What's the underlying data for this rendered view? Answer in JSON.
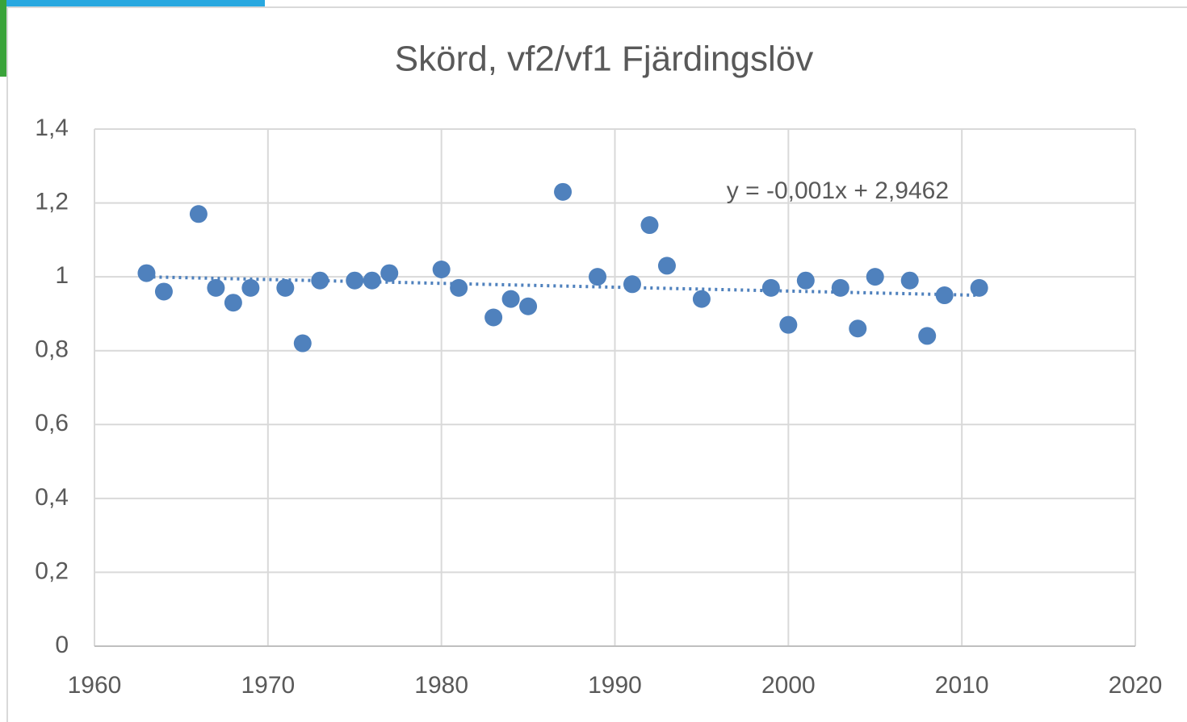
{
  "chart_data": {
    "type": "scatter",
    "title": "Skörd, vf2/vf1 Fjärdingslöv",
    "x": [
      1963,
      1964,
      1966,
      1967,
      1968,
      1969,
      1971,
      1972,
      1973,
      1975,
      1976,
      1977,
      1980,
      1981,
      1983,
      1984,
      1985,
      1987,
      1989,
      1991,
      1992,
      1993,
      1995,
      1999,
      2000,
      2001,
      2003,
      2004,
      2005,
      2007,
      2008,
      2009,
      2011
    ],
    "values": [
      1.01,
      0.96,
      1.17,
      0.97,
      0.93,
      0.97,
      0.97,
      0.82,
      0.99,
      0.99,
      0.99,
      1.01,
      1.02,
      0.97,
      0.89,
      0.94,
      0.92,
      1.23,
      1.0,
      0.98,
      1.14,
      1.03,
      0.94,
      0.97,
      0.87,
      0.99,
      0.97,
      0.86,
      1.0,
      0.99,
      0.84,
      0.95,
      0.97
    ],
    "color": "#4f81bd",
    "trendline": {
      "x": [
        1963,
        2011
      ],
      "values": [
        1.0,
        0.95
      ],
      "color": "#4f81bd",
      "label": "y = -0,001x + 2,9462"
    },
    "xlim": [
      1960,
      2020
    ],
    "xticks": [
      1960,
      1970,
      1980,
      1990,
      2000,
      2010,
      2020
    ],
    "ylim": [
      0,
      1.4
    ],
    "yticks": [
      0,
      {
        "value": 0.2,
        "label": "0,2"
      },
      {
        "value": 0.4,
        "label": "0,4"
      },
      {
        "value": 0.6,
        "label": "0,6"
      },
      {
        "value": 0.8,
        "label": "0,8"
      },
      1,
      {
        "value": 1.2,
        "label": "1,2"
      },
      {
        "value": 1.4,
        "label": "1,4"
      }
    ],
    "grid": true
  }
}
